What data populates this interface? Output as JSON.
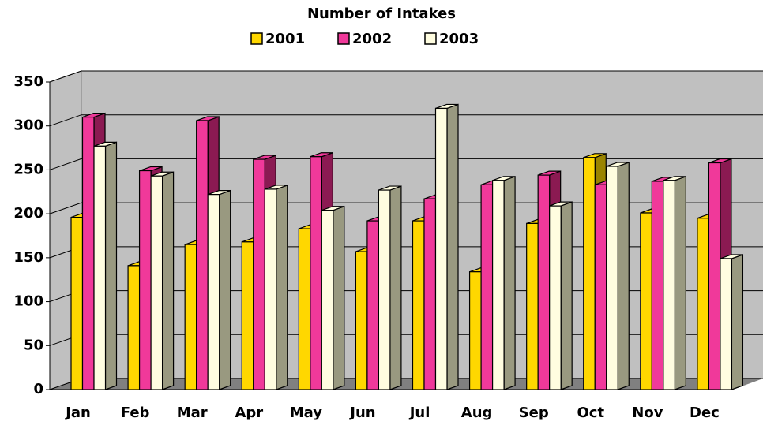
{
  "chart_data": {
    "type": "bar3d",
    "title": "Number of Intakes",
    "categories": [
      "Jan",
      "Feb",
      "Mar",
      "Apr",
      "May",
      "Jun",
      "Jul",
      "Aug",
      "Sep",
      "Oct",
      "Nov",
      "Dec"
    ],
    "series": [
      {
        "name": "2001",
        "color": "#ffd700",
        "side_color": "#9a8400",
        "values": [
          196,
          141,
          165,
          168,
          183,
          157,
          192,
          134,
          189,
          264,
          201,
          195
        ]
      },
      {
        "name": "2002",
        "color": "#f0399a",
        "side_color": "#8b1a52",
        "values": [
          310,
          249,
          306,
          262,
          265,
          192,
          217,
          233,
          244,
          233,
          237,
          258
        ]
      },
      {
        "name": "2003",
        "color": "#fffde0",
        "side_color": "#999980",
        "values": [
          277,
          243,
          222,
          228,
          204,
          227,
          320,
          238,
          209,
          254,
          238,
          149
        ]
      }
    ],
    "ylim": [
      0,
      350
    ],
    "yticks": [
      0,
      50,
      100,
      150,
      200,
      250,
      300,
      350
    ],
    "grid": true,
    "legend": "top"
  }
}
